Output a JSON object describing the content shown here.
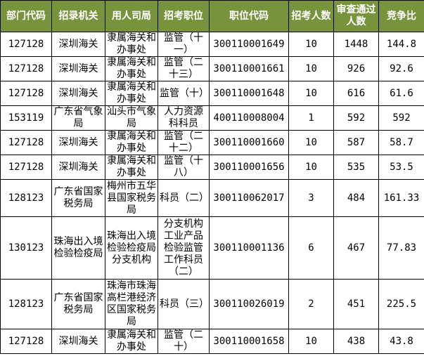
{
  "colors": {
    "header_bg": "#77933c",
    "header_text": "#ffffff"
  },
  "headers": [
    "部门代码",
    "招录机关",
    "用人司局",
    "招考职位",
    "职位代码",
    "招考人数",
    "审查通过人数",
    "竞争比"
  ],
  "header_display": [
    "部门代码",
    "招录机关",
    "用人司局",
    "招考职位",
    "职位代码",
    "招考人\n数",
    "审查通\n过人数",
    "竞争比"
  ],
  "rows": [
    [
      "127128",
      "深圳海关",
      "隶属海关和办事处",
      "监管（十一）",
      "300110001649",
      "10",
      "1448",
      "144.8"
    ],
    [
      "127128",
      "深圳海关",
      "隶属海关和办事处",
      "监管（二十三）",
      "300110001661",
      "10",
      "926",
      "92.6"
    ],
    [
      "127128",
      "深圳海关",
      "隶属海关和办事处",
      "监管（十）",
      "300110001648",
      "10",
      "616",
      "61.6"
    ],
    [
      "153119",
      "广东省气象局",
      "汕头市气象局",
      "人力资源科科员",
      "400110008004",
      "1",
      "592",
      "592"
    ],
    [
      "127128",
      "深圳海关",
      "隶属海关和办事处",
      "监管（二十二）",
      "300110001660",
      "10",
      "587",
      "58.7"
    ],
    [
      "127128",
      "深圳海关",
      "隶属海关和办事处",
      "监管（十八）",
      "300110001656",
      "10",
      "535",
      "53.5"
    ],
    [
      "128123",
      "广东省国家税务局",
      "梅州市五华县国家税务局",
      "科员（二）",
      "300110062017",
      "3",
      "484",
      "161.33"
    ],
    [
      "130123",
      "珠海出入境检验检疫局",
      "珠海出入境检验检疫局分支机构",
      "分支机构工业产品检验监管工作科员（二）",
      "300110001136",
      "6",
      "467",
      "77.83"
    ],
    [
      "128123",
      "广东省国家税务局",
      "珠海市珠海高栏港经济区国家税务局",
      "科员（三）",
      "300110026019",
      "2",
      "451",
      "225.5"
    ],
    [
      "127128",
      "深圳海关",
      "隶属海关和办事处",
      "监管（二十）",
      "300110001658",
      "10",
      "438",
      "43.8"
    ]
  ]
}
